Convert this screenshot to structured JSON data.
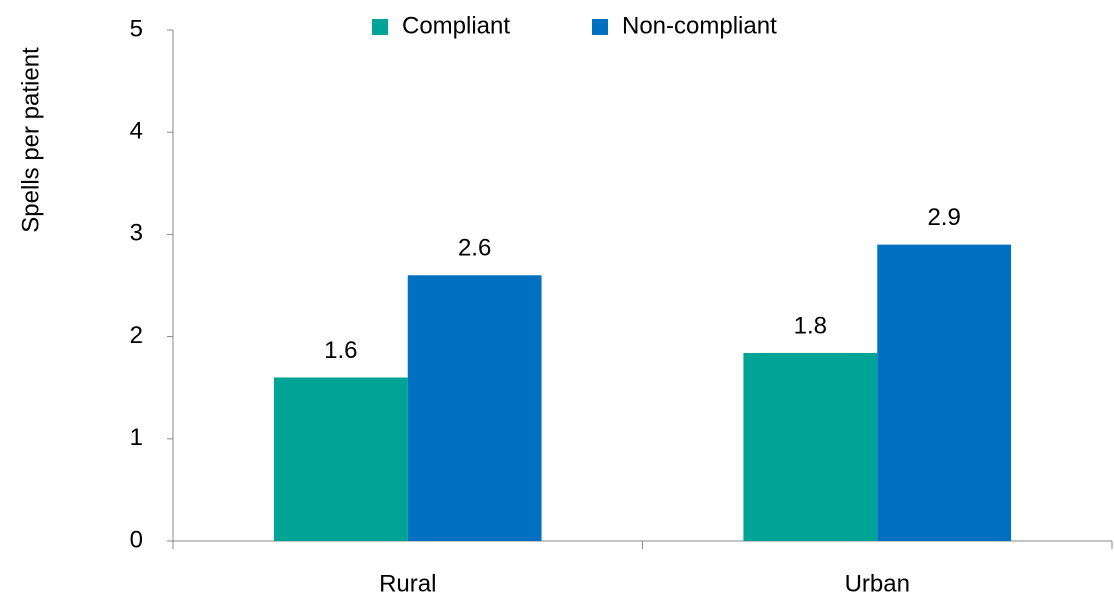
{
  "chart_data": {
    "type": "bar",
    "y_label": "Spells per patient",
    "categories": [
      "Rural",
      "Urban"
    ],
    "series": [
      {
        "name": "Compliant",
        "color": "#00a497",
        "values": [
          1.6,
          1.84
        ],
        "value_labels": [
          "1.6",
          "1.8"
        ]
      },
      {
        "name": "Non-compliant",
        "color": "#0070c0",
        "values": [
          2.6,
          2.9
        ]
      }
    ],
    "ylim": [
      0,
      5
    ],
    "yticks": [
      0,
      1,
      2,
      3,
      4,
      5
    ],
    "legend": "top",
    "grid": false
  }
}
